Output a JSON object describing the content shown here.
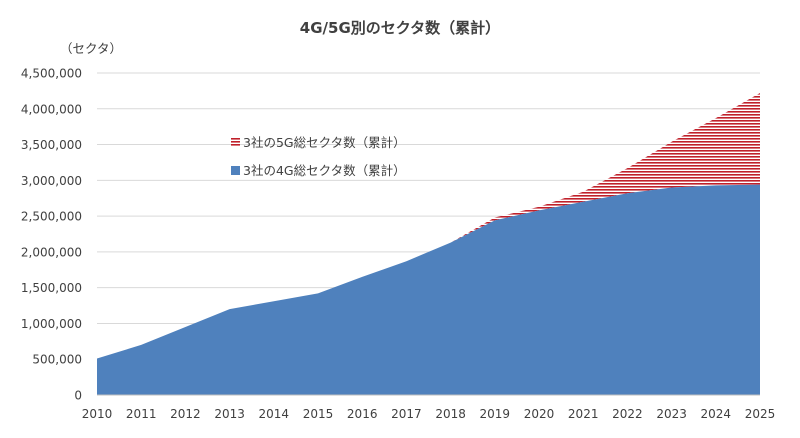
{
  "chart_data": {
    "type": "area",
    "title": "4G/5G別のセクタ数（累計）",
    "ylabel": "（セクタ）",
    "xlabel": "",
    "ylim": [
      0,
      4500000
    ],
    "yticks": [
      0,
      500000,
      1000000,
      1500000,
      2000000,
      2500000,
      3000000,
      3500000,
      4000000,
      4500000
    ],
    "ytick_labels": [
      "0",
      "500,000",
      "1,000,000",
      "1,500,000",
      "2,000,000",
      "2,500,000",
      "3,000,000",
      "3,500,000",
      "4,000,000",
      "4,500,000"
    ],
    "categories": [
      "2010",
      "2011",
      "2012",
      "2013",
      "2014",
      "2015",
      "2016",
      "2017",
      "2018",
      "2019",
      "2020",
      "2021",
      "2022",
      "2023",
      "2024",
      "2025"
    ],
    "grid": "horizontal",
    "legend_position": "center-left",
    "series": [
      {
        "name": "3社の4G総セクタ数（累計）",
        "color": "#4f81bd",
        "style": "solid",
        "values": [
          510000,
          700000,
          950000,
          1200000,
          1310000,
          1420000,
          1650000,
          1870000,
          2130000,
          2440000,
          2580000,
          2700000,
          2820000,
          2900000,
          2930000,
          2940000
        ]
      },
      {
        "name": "3社の5G総セクタ数（累計）",
        "color": "#c0202a",
        "style": "horizontal-stripes",
        "stacked_on": "3社の4G総セクタ数（累計）",
        "values": [
          0,
          0,
          0,
          0,
          0,
          0,
          0,
          0,
          0,
          40000,
          50000,
          140000,
          350000,
          640000,
          940000,
          1280000
        ]
      }
    ]
  }
}
